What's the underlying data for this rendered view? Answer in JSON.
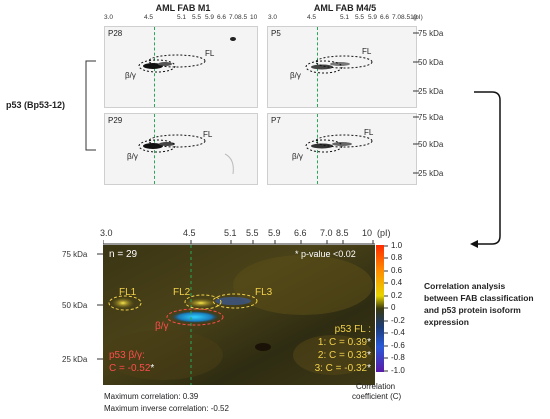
{
  "top": {
    "col1_title": "AML FAB M1",
    "col2_title": "AML FAB M4/5",
    "ph_ticks": [
      "3.0",
      "4.5",
      "5.1",
      "5.5",
      "5.9",
      "6.6",
      "7.08.5",
      "10"
    ],
    "ph_ticks2": [
      "3.0",
      "4.5",
      "5.1",
      "5.5",
      "5.9",
      "6.6",
      "7.08.510",
      "(pI)"
    ],
    "gels": [
      "P28",
      "P5",
      "P29",
      "P7"
    ],
    "kda_labels": [
      "75 kDa",
      "50 kDa",
      "25 kDa",
      "75 kDa",
      "50 kDa",
      "25 kDa"
    ],
    "fl_label": "FL",
    "bg_label": "β/γ",
    "antibody_label": "p53 (Bp53-12)"
  },
  "bottom": {
    "ph_ticks": [
      "3.0",
      "4.5",
      "5.1",
      "5.5",
      "5.9",
      "6.6",
      "7.0",
      "8.5",
      "10",
      "(pI)"
    ],
    "kda_labels": [
      "75 kDa",
      "50 kDa",
      "25 kDa"
    ],
    "n_label": "n = 29",
    "pvalue_label": "* p-value <0.02",
    "fl1": "FL1",
    "fl2": "FL2",
    "fl3": "FL3",
    "bg": "β/γ",
    "p53bg_title": "p53 β/γ:",
    "p53bg_value": "C = -0.52",
    "p53fl_title": "p53 FL :",
    "p53fl_values": [
      "1: C = 0.39",
      "2: C = 0.33",
      "3: C = -0.32"
    ],
    "star": "*",
    "colorbar_ticks": [
      "1.0",
      "0.8",
      "0.6",
      "0.4",
      "0.2",
      "0",
      "-0.2",
      "-0.4",
      "-0.6",
      "-0.8",
      "-1.0"
    ],
    "colorbar_label_1": "Correlation",
    "colorbar_label_2": "coefficient (C)",
    "max_corr": "Maximum correlation: 0.39",
    "max_inv_corr": "Maximum inverse correlation: -0.52"
  },
  "side_note": [
    "Correlation analysis",
    "between FAB classification",
    "and p53 protein isoform",
    "expression"
  ],
  "colors": {
    "green_dash": "#2aa85a",
    "red_text": "#ff4d4d",
    "yellow_text": "#f2d24b",
    "arrow": "#111111"
  }
}
